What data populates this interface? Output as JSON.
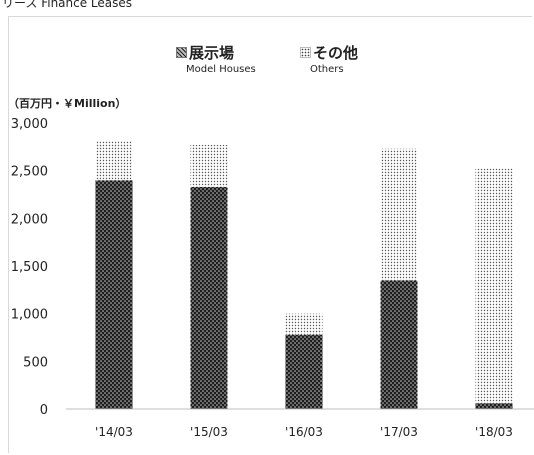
{
  "header": {
    "text": "リース Finance Leases"
  },
  "chart_data": {
    "type": "bar",
    "stacked": true,
    "title": "",
    "unit_label": "（百万円・￥Million）",
    "categories": [
      "'14/03",
      "'15/03",
      "'16/03",
      "'17/03",
      "'18/03"
    ],
    "series": [
      {
        "name": "展示場",
        "name_en": "Model Houses",
        "values": [
          2400,
          2330,
          780,
          1350,
          60
        ],
        "pattern": "cross-hatch-dark"
      },
      {
        "name": "その他",
        "name_en": "Others",
        "values": [
          410,
          440,
          220,
          1380,
          2460
        ],
        "pattern": "dot-light"
      }
    ],
    "ylim": [
      0,
      3000
    ],
    "yticks": [
      0,
      500,
      1000,
      1500,
      2000,
      2500,
      3000
    ],
    "ytick_labels": [
      "0",
      "500",
      "1,000",
      "1,500",
      "2,000",
      "2,500",
      "3,000"
    ],
    "grid": false,
    "legend_position": "top"
  }
}
